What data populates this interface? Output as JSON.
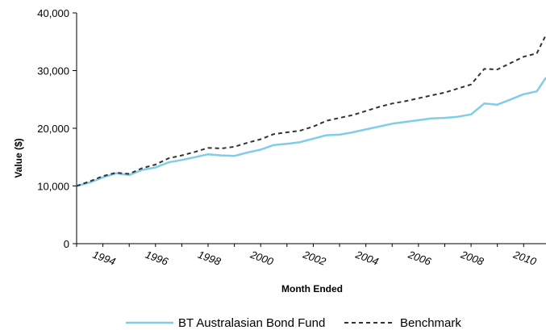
{
  "chart_data": {
    "type": "line",
    "xlabel": "Month Ended",
    "ylabel": "Value ($)",
    "ylim": [
      0,
      40000
    ],
    "yticks": [
      0,
      10000,
      20000,
      30000,
      40000
    ],
    "ytick_labels": [
      "0",
      "10,000",
      "20,000",
      "30,000",
      "40,000"
    ],
    "xlim": [
      1993.0,
      2010.85
    ],
    "xticks": [
      1994,
      1996,
      1998,
      2000,
      2002,
      2004,
      2006,
      2008,
      2010
    ],
    "xtick_labels": [
      "1994",
      "1996",
      "1998",
      "2000",
      "2002",
      "2004",
      "2006",
      "2008",
      "2010"
    ],
    "grid": false,
    "legend_position": "bottom",
    "series": [
      {
        "name": "BT Australasian Bond Fund",
        "color": "#7fcde8",
        "style": "solid",
        "x": [
          1993.0,
          1993.5,
          1994.0,
          1994.5,
          1995.0,
          1995.5,
          1996.0,
          1996.5,
          1997.0,
          1997.5,
          1998.0,
          1998.5,
          1999.0,
          1999.5,
          2000.0,
          2000.5,
          2001.0,
          2001.5,
          2002.0,
          2002.5,
          2003.0,
          2003.5,
          2004.0,
          2004.5,
          2005.0,
          2005.5,
          2006.0,
          2006.5,
          2007.0,
          2007.5,
          2008.0,
          2008.5,
          2009.0,
          2009.5,
          2010.0,
          2010.5,
          2010.85
        ],
        "y": [
          10000,
          10600,
          11500,
          12200,
          11900,
          12800,
          13200,
          14100,
          14500,
          15000,
          15500,
          15300,
          15200,
          15800,
          16300,
          17100,
          17300,
          17600,
          18200,
          18800,
          18900,
          19300,
          19800,
          20300,
          20800,
          21100,
          21400,
          21700,
          21800,
          22000,
          22400,
          24300,
          24100,
          25000,
          25900,
          26400,
          28800
        ]
      },
      {
        "name": "Benchmark",
        "color": "#333333",
        "style": "dashed",
        "x": [
          1993.0,
          1993.5,
          1994.0,
          1994.5,
          1995.0,
          1995.5,
          1996.0,
          1996.5,
          1997.0,
          1997.5,
          1998.0,
          1998.5,
          1999.0,
          1999.5,
          2000.0,
          2000.5,
          2001.0,
          2001.5,
          2002.0,
          2002.5,
          2003.0,
          2003.5,
          2004.0,
          2004.5,
          2005.0,
          2005.5,
          2006.0,
          2006.5,
          2007.0,
          2007.5,
          2008.0,
          2008.5,
          2009.0,
          2009.5,
          2010.0,
          2010.5,
          2010.85
        ],
        "y": [
          10000,
          10800,
          11700,
          12300,
          12100,
          13100,
          13700,
          14800,
          15300,
          15900,
          16600,
          16500,
          16800,
          17500,
          18100,
          19000,
          19300,
          19600,
          20300,
          21300,
          21800,
          22300,
          23000,
          23700,
          24300,
          24700,
          25200,
          25700,
          26200,
          26900,
          27600,
          30300,
          30200,
          31300,
          32400,
          33000,
          36200
        ]
      }
    ]
  }
}
